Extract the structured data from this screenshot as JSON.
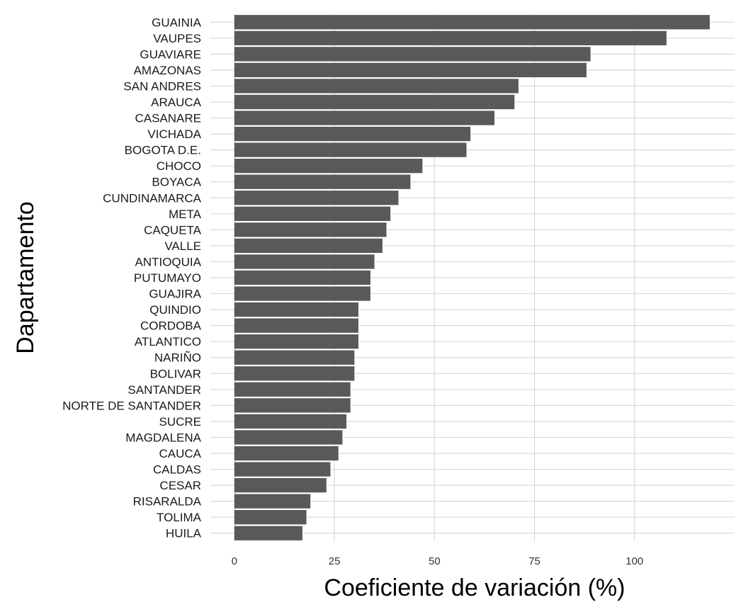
{
  "chart_data": {
    "type": "bar",
    "orientation": "horizontal",
    "xlabel": "Coeficiente de variación (%)",
    "ylabel": "Dapartamento",
    "xlim": [
      -6,
      125
    ],
    "xticks": [
      0,
      25,
      50,
      75,
      100
    ],
    "grid": true,
    "bar_color": "#595959",
    "grid_color": "#d9d9d9",
    "categories": [
      "GUAINIA",
      "VAUPES",
      "GUAVIARE",
      "AMAZONAS",
      "SAN ANDRES",
      "ARAUCA",
      "CASANARE",
      "VICHADA",
      "BOGOTA D.E.",
      "CHOCO",
      "BOYACA",
      "CUNDINAMARCA",
      "META",
      "CAQUETA",
      "VALLE",
      "ANTIOQUIA",
      "PUTUMAYO",
      "GUAJIRA",
      "QUINDIO",
      "CORDOBA",
      "ATLANTICO",
      "NARIÑO",
      "BOLIVAR",
      "SANTANDER",
      "NORTE DE SANTANDER",
      "SUCRE",
      "MAGDALENA",
      "CAUCA",
      "CALDAS",
      "CESAR",
      "RISARALDA",
      "TOLIMA",
      "HUILA"
    ],
    "values": [
      118.8,
      108,
      89,
      88,
      71,
      70,
      65,
      59,
      58,
      47,
      44,
      41,
      39,
      38,
      37,
      35,
      34,
      34,
      31,
      31,
      31,
      30,
      30,
      29,
      29,
      28,
      27,
      26,
      24,
      23,
      19,
      18,
      17
    ]
  }
}
